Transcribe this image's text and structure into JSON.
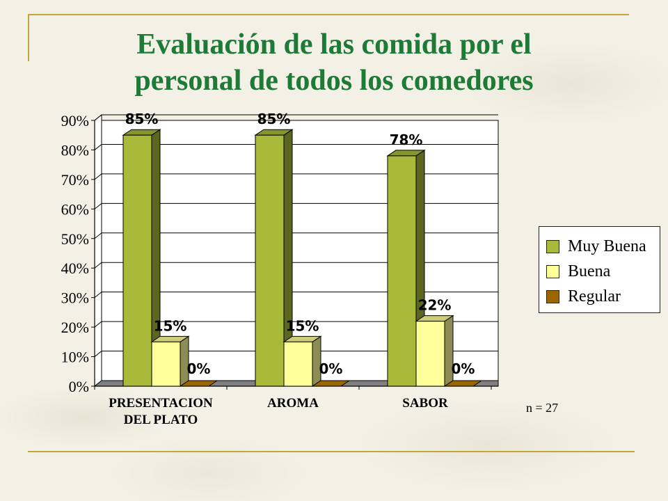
{
  "slide": {
    "title_line1": "Evaluación  de las comida por el",
    "title_line2": "personal de todos los comedores",
    "sample_note": "n = 27"
  },
  "colors": {
    "title": "#1d7a37",
    "rule": "#c9a437",
    "muy_buena": "#a9ba3b",
    "buena": "#ffff99",
    "regular": "#996600",
    "floor": "#808080"
  },
  "chart_data": {
    "type": "bar",
    "categories": [
      [
        "PRESENTACION",
        "DEL PLATO"
      ],
      [
        "AROMA"
      ],
      [
        "SABOR"
      ]
    ],
    "series": [
      {
        "name": "Muy Buena",
        "values": [
          85,
          85,
          78
        ],
        "labels": [
          "85%",
          "85%",
          "78%"
        ]
      },
      {
        "name": "Buena",
        "values": [
          15,
          15,
          22
        ],
        "labels": [
          "15%",
          "15%",
          "22%"
        ]
      },
      {
        "name": "Regular",
        "values": [
          0,
          0,
          0
        ],
        "labels": [
          "0%",
          "0%",
          "0%"
        ]
      }
    ],
    "yticks": [
      "0%",
      "10%",
      "20%",
      "30%",
      "40%",
      "50%",
      "60%",
      "70%",
      "80%",
      "90%"
    ],
    "ylim": [
      0,
      90
    ],
    "grid": true,
    "legend_position": "right"
  }
}
